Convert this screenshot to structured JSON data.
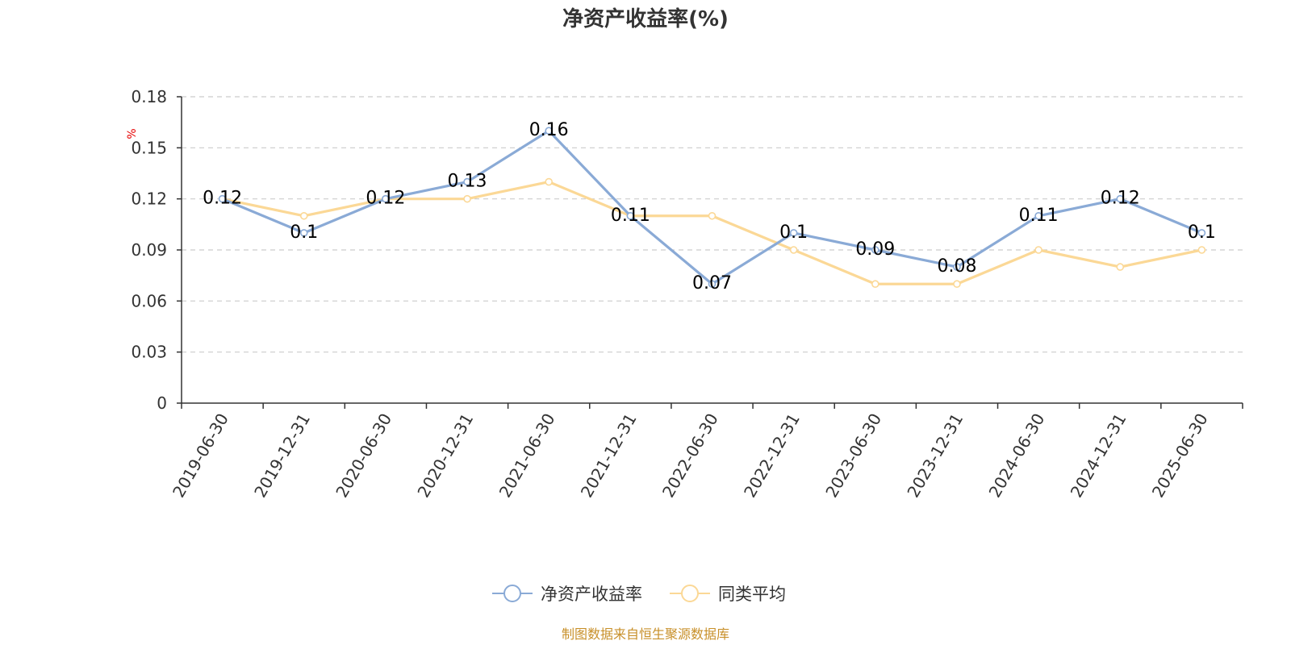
{
  "chart_data": {
    "type": "line",
    "title": "净资产收益率(%)",
    "ylabel": "%",
    "ylim": [
      0,
      0.18
    ],
    "yticks": [
      "0",
      "0.03",
      "0.06",
      "0.09",
      "0.12",
      "0.15",
      "0.18"
    ],
    "grid": true,
    "legend_placement": "bottom-center",
    "categories": [
      "2019-06-30",
      "2019-12-31",
      "2020-06-30",
      "2020-12-31",
      "2021-06-30",
      "2021-12-31",
      "2022-06-30",
      "2022-12-31",
      "2023-06-30",
      "2023-12-31",
      "2024-06-30",
      "2024-12-31",
      "2025-06-30"
    ],
    "series": [
      {
        "name": "净资产收益率",
        "color": "#8aaad6",
        "values": [
          0.12,
          0.1,
          0.12,
          0.13,
          0.16,
          0.11,
          0.07,
          0.1,
          0.09,
          0.08,
          0.11,
          0.12,
          0.1
        ],
        "labels": [
          "0.12",
          "0.1",
          "0.12",
          "0.13",
          "0.16",
          "0.11",
          "0.07",
          "0.1",
          "0.09",
          "0.08",
          "0.11",
          "0.12",
          "0.1"
        ]
      },
      {
        "name": "同类平均",
        "color": "#fbd896",
        "values": [
          0.12,
          0.11,
          0.12,
          0.12,
          0.13,
          0.11,
          0.11,
          0.09,
          0.07,
          0.07,
          0.09,
          0.08,
          0.09
        ]
      }
    ]
  },
  "footer": {
    "source": "制图数据来自恒生聚源数据库"
  }
}
